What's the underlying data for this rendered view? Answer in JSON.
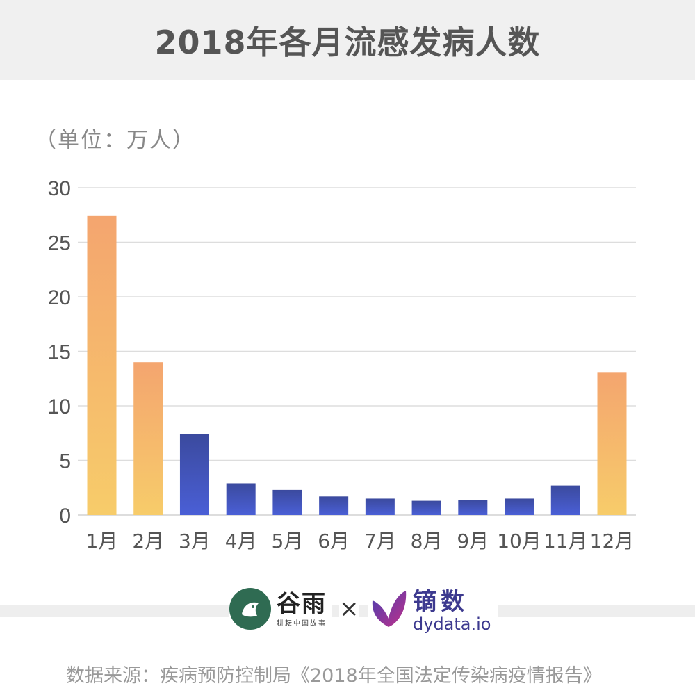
{
  "title": "2018年各月流感发病人数",
  "unit_label": "（单位：万人）",
  "logos": {
    "guyu_name": "谷雨",
    "guyu_sub": "耕耘中国故事",
    "times": "×",
    "dydata_name": "镝数",
    "dydata_url": "dydata.io"
  },
  "source": "数据来源：疾病预防控制局《2018年全国法定传染病疫情报告》",
  "colors": {
    "winter_top": "#f4a56f",
    "winter_bottom": "#f7cc6a",
    "other_top": "#3b4a9e",
    "other_bottom": "#4a5fd6",
    "grid": "#dddddd",
    "axis_text": "#555555",
    "guyu_green": "#2f6b52",
    "dydata_purple": "#3d3a8f"
  },
  "chart_data": {
    "type": "bar",
    "title": "2018年各月流感发病人数",
    "ylabel": "（单位：万人）",
    "xlabel": "",
    "categories": [
      "1月",
      "2月",
      "3月",
      "4月",
      "5月",
      "6月",
      "7月",
      "8月",
      "9月",
      "10月",
      "11月",
      "12月"
    ],
    "values": [
      27.4,
      14.0,
      7.4,
      2.9,
      2.3,
      1.7,
      1.5,
      1.3,
      1.4,
      1.5,
      2.7,
      13.1
    ],
    "highlight": [
      true,
      true,
      false,
      false,
      false,
      false,
      false,
      false,
      false,
      false,
      false,
      true
    ],
    "yticks": [
      0,
      5,
      10,
      15,
      20,
      25,
      30
    ],
    "ylim": [
      0,
      30
    ],
    "grid": true,
    "legend": "none"
  }
}
